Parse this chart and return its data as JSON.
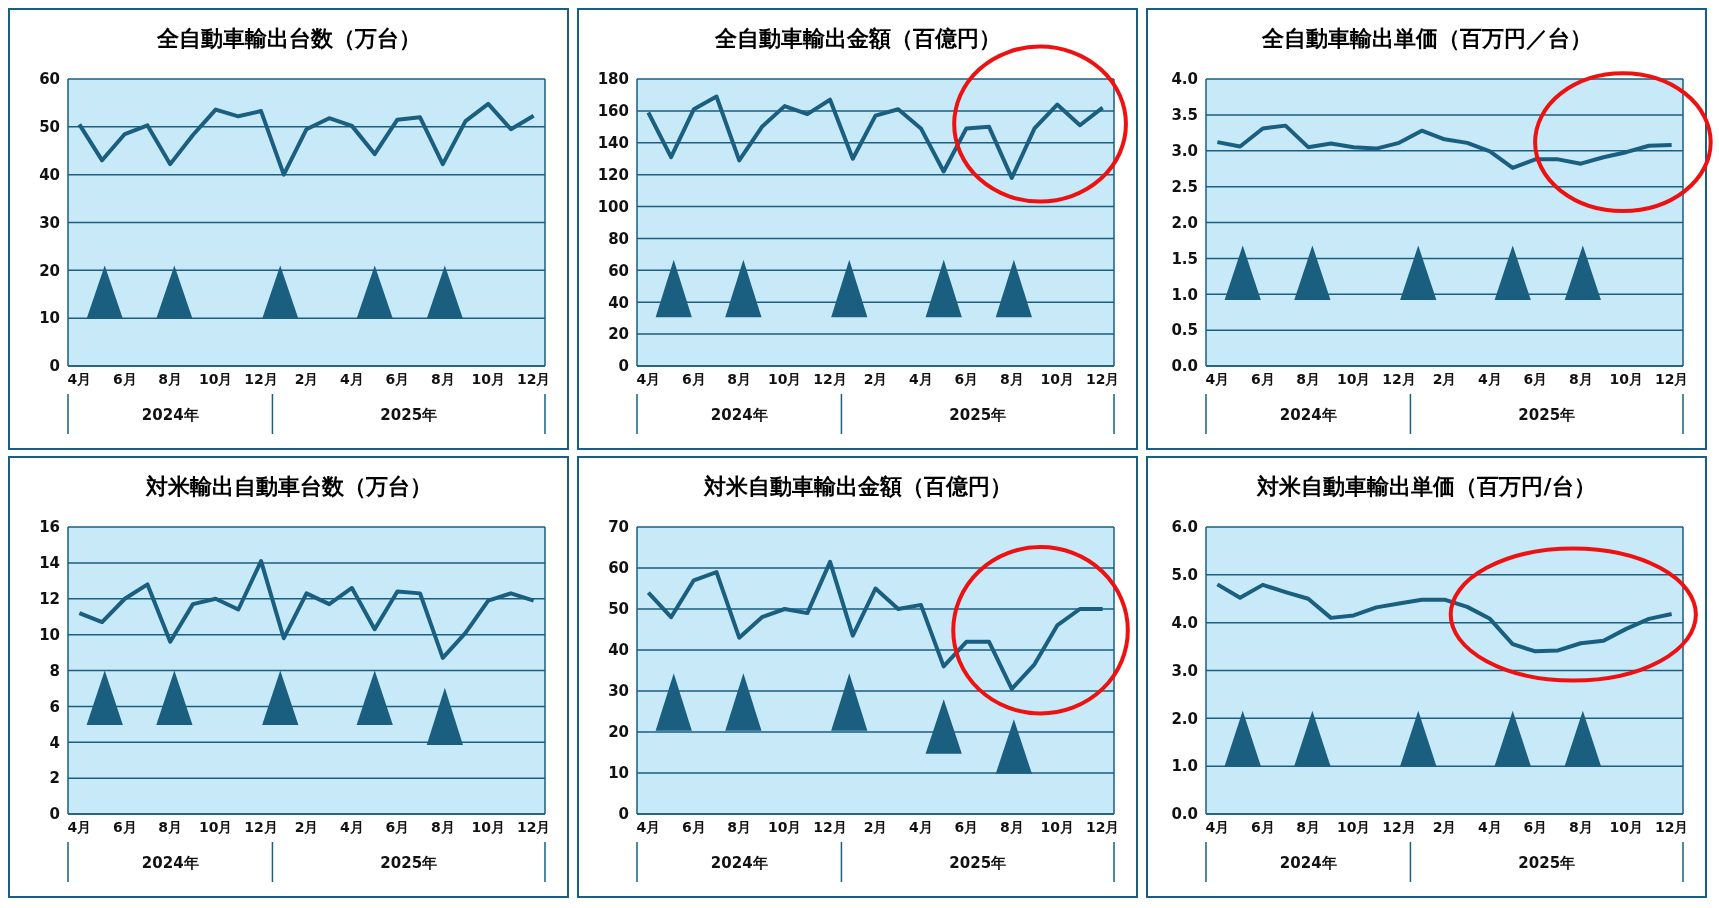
{
  "chart_data": [
    {
      "type": "line",
      "title": "全自動車輸出台数（万台）",
      "categories": [
        "4月",
        null,
        "6月",
        null,
        "8月",
        null,
        "10月",
        null,
        "12月",
        null,
        "2月",
        null,
        "4月",
        null,
        "6月",
        null,
        "8月",
        null,
        "10月",
        null,
        "12月"
      ],
      "values": [
        50.5,
        43,
        48.5,
        50.3,
        42.2,
        48.3,
        53.6,
        52.2,
        53.3,
        40,
        49.5,
        51.8,
        50.2,
        44.3,
        51.5,
        52,
        42.2,
        51.2,
        54.8,
        49.5,
        52.3
      ],
      "color": "#1a5e80",
      "ylim": [
        0,
        60
      ],
      "yticks": [
        0,
        10,
        20,
        30,
        40,
        50,
        60
      ],
      "grid": "y",
      "annotations": [
        "2024年",
        "2025年"
      ]
    },
    {
      "type": "line",
      "title": "全自動車輸出金額（百億円）",
      "categories": [
        "4月",
        null,
        "6月",
        null,
        "8月",
        null,
        "10月",
        null,
        "12月",
        null,
        "2月",
        null,
        "4月",
        null,
        "6月",
        null,
        "8月",
        null,
        "10月",
        null,
        "12月"
      ],
      "values": [
        159,
        131,
        161,
        169,
        129,
        150,
        163,
        158,
        167,
        130,
        157,
        161,
        149,
        122,
        149,
        150,
        118,
        149,
        164,
        151,
        162
      ],
      "color": "#1a5e80",
      "ylim": [
        0,
        180
      ],
      "yticks": [
        0,
        20,
        40,
        60,
        80,
        100,
        120,
        140,
        160,
        180
      ],
      "grid": "y",
      "annotations": [
        "2024年",
        "2025年"
      ]
    },
    {
      "type": "line",
      "title": "全自動車輸出単価（百万円／台）",
      "categories": [
        "4月",
        null,
        "6月",
        null,
        "8月",
        null,
        "10月",
        null,
        "12月",
        null,
        "2月",
        null,
        "4月",
        null,
        "6月",
        null,
        "8月",
        null,
        "10月",
        null,
        "12月"
      ],
      "values": [
        3.12,
        3.06,
        3.31,
        3.35,
        3.05,
        3.1,
        3.05,
        3.03,
        3.11,
        3.28,
        3.16,
        3.11,
        2.99,
        2.76,
        2.88,
        2.88,
        2.82,
        2.91,
        2.98,
        3.07,
        3.08
      ],
      "color": "#1a5e80",
      "ylim": [
        0,
        4
      ],
      "yticks": [
        {
          "value": 0,
          "label": "0.0"
        },
        {
          "value": 0.5,
          "label": "0.5"
        },
        {
          "value": 1,
          "label": "1.0"
        },
        {
          "value": 1.5,
          "label": "1.5"
        },
        {
          "value": 2,
          "label": "2.0"
        },
        {
          "value": 2.5,
          "label": "2.5"
        },
        {
          "value": 3,
          "label": "3.0"
        },
        {
          "value": 3.5,
          "label": "3.5"
        },
        {
          "value": 4,
          "label": "4.0"
        }
      ],
      "grid": "y",
      "annotations": [
        "2024年",
        "2025年"
      ]
    },
    {
      "type": "line",
      "title": "対米輸出自動車台数（万台）",
      "categories": [
        "4月",
        null,
        "6月",
        null,
        "8月",
        null,
        "10月",
        null,
        "12月",
        null,
        "2月",
        null,
        "4月",
        null,
        "6月",
        null,
        "8月",
        null,
        "10月",
        null,
        "12月"
      ],
      "values": [
        11.2,
        10.7,
        12,
        12.8,
        9.6,
        11.7,
        12,
        11.4,
        14.1,
        9.8,
        12.3,
        11.7,
        12.6,
        10.3,
        12.4,
        12.3,
        8.7,
        10.1,
        11.9,
        12.3,
        11.9
      ],
      "color": "#1a5e80",
      "ylim": [
        0,
        16
      ],
      "yticks": [
        0,
        2,
        4,
        6,
        8,
        10,
        12,
        14,
        16
      ],
      "grid": "y",
      "annotations": [
        "2024年",
        "2025年"
      ]
    },
    {
      "type": "line",
      "title": "対米自動車輸出金額（百億円）",
      "categories": [
        "4月",
        null,
        "6月",
        null,
        "8月",
        null,
        "10月",
        null,
        "12月",
        null,
        "2月",
        null,
        "4月",
        null,
        "6月",
        null,
        "8月",
        null,
        "10月",
        null,
        "12月"
      ],
      "values": [
        54,
        48,
        57,
        59,
        43,
        48,
        50,
        49,
        61.5,
        43.5,
        55,
        50,
        51,
        36,
        42,
        42,
        30.5,
        36.5,
        46,
        50,
        50
      ],
      "color": "#1a5e80",
      "ylim": [
        0,
        70
      ],
      "yticks": [
        0,
        10,
        20,
        30,
        40,
        50,
        60,
        70
      ],
      "grid": "y",
      "annotations": [
        "2024年",
        "2025年"
      ]
    },
    {
      "type": "line",
      "title": "対米自動車輸出単価（百万円/台）",
      "categories": [
        "4月",
        null,
        "6月",
        null,
        "8月",
        null,
        "10月",
        null,
        "12月",
        null,
        "2月",
        null,
        "4月",
        null,
        "6月",
        null,
        "8月",
        null,
        "10月",
        null,
        "12月"
      ],
      "values": [
        4.8,
        4.52,
        4.79,
        4.64,
        4.5,
        4.1,
        4.15,
        4.32,
        4.4,
        4.48,
        4.48,
        4.33,
        4.08,
        3.55,
        3.4,
        3.42,
        3.57,
        3.62,
        3.87,
        4.08,
        4.18
      ],
      "color": "#1a5e80",
      "ylim": [
        0,
        6
      ],
      "yticks": [
        {
          "value": 0,
          "label": "0.0"
        },
        {
          "value": 1,
          "label": "1.0"
        },
        {
          "value": 2,
          "label": "2.0"
        },
        {
          "value": 3,
          "label": "3.0"
        },
        {
          "value": 4,
          "label": "4.0"
        },
        {
          "value": 5,
          "label": "5.0"
        },
        {
          "value": 6,
          "label": "6.0"
        }
      ],
      "grid": "y",
      "annotations": [
        "2024年",
        "2025年"
      ]
    }
  ]
}
